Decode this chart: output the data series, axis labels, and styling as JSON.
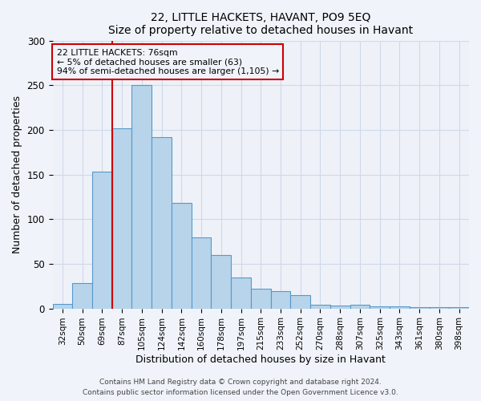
{
  "title": "22, LITTLE HACKETS, HAVANT, PO9 5EQ",
  "subtitle": "Size of property relative to detached houses in Havant",
  "xlabel": "Distribution of detached houses by size in Havant",
  "ylabel": "Number of detached properties",
  "bin_labels": [
    "32sqm",
    "50sqm",
    "69sqm",
    "87sqm",
    "105sqm",
    "124sqm",
    "142sqm",
    "160sqm",
    "178sqm",
    "197sqm",
    "215sqm",
    "233sqm",
    "252sqm",
    "270sqm",
    "288sqm",
    "307sqm",
    "325sqm",
    "343sqm",
    "361sqm",
    "380sqm",
    "398sqm"
  ],
  "bar_heights": [
    5,
    28,
    153,
    202,
    250,
    192,
    118,
    80,
    60,
    35,
    22,
    19,
    15,
    4,
    3,
    4,
    2,
    2,
    1,
    1,
    1
  ],
  "bar_color": "#b8d4ea",
  "bar_edge_color": "#5599cc",
  "property_line_label": "22 LITTLE HACKETS: 76sqm",
  "annotation_line1": "← 5% of detached houses are smaller (63)",
  "annotation_line2": "94% of semi-detached houses are larger (1,105) →",
  "vline_color": "#cc0000",
  "annotation_box_edge_color": "#cc0000",
  "ylim": [
    0,
    300
  ],
  "yticks": [
    0,
    50,
    100,
    150,
    200,
    250,
    300
  ],
  "footer1": "Contains HM Land Registry data © Crown copyright and database right 2024.",
  "footer2": "Contains public sector information licensed under the Open Government Licence v3.0.",
  "background_color": "#f0f4fa",
  "plot_bg_color": "#eef2f8",
  "grid_color": "#d0d8e8"
}
